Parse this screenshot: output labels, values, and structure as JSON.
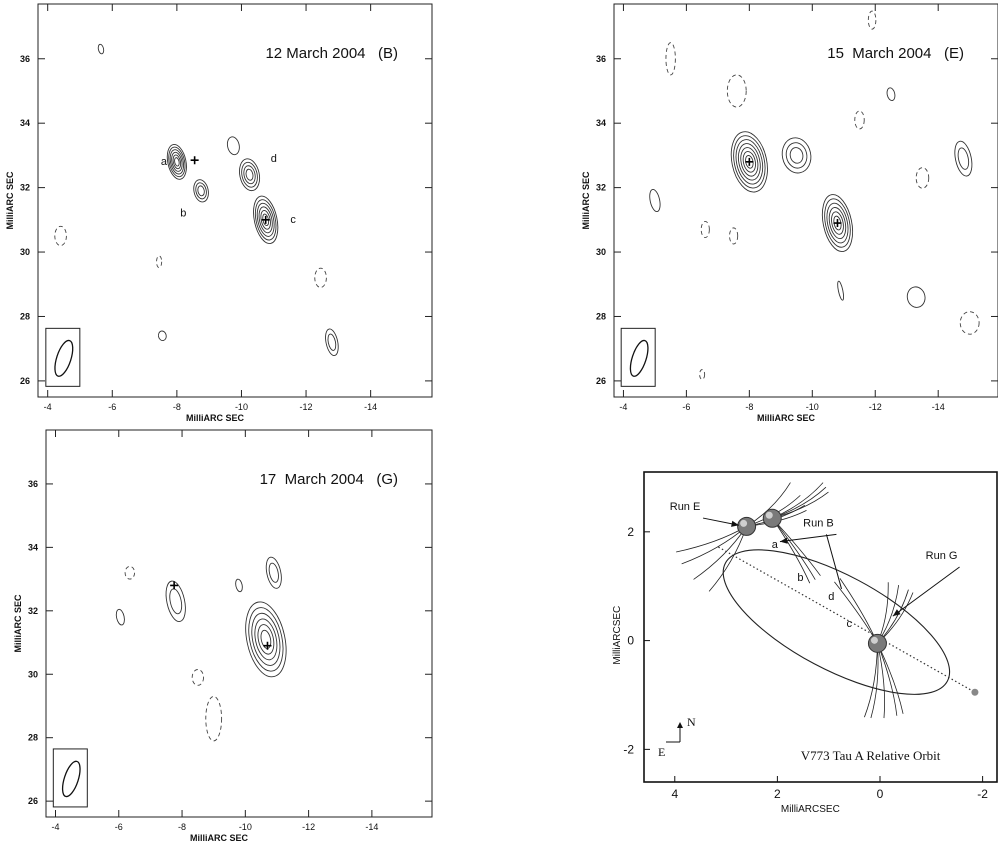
{
  "chart_data": [
    {
      "type": "contour",
      "title": "12 March 2004   (B)",
      "xlabel": "MilliARC SEC",
      "ylabel": "MilliARC SEC",
      "xlim": [
        -3.7,
        -15.9
      ],
      "ylim": [
        25.5,
        37.7
      ],
      "xticks": [
        -4,
        -6,
        -8,
        -10,
        -12,
        -14
      ],
      "yticks": [
        26,
        28,
        30,
        32,
        34,
        36
      ],
      "beam": {
        "x": -4.5,
        "y": 26.7,
        "rx": 0.22,
        "ry": 0.58
      },
      "components": [
        {
          "x": -8.0,
          "y": 32.8,
          "rx": 0.28,
          "ry": 0.55,
          "levels": 6,
          "label": "a",
          "lx": -7.6,
          "ly": 32.7
        },
        {
          "x": -8.75,
          "y": 31.9,
          "rx": 0.22,
          "ry": 0.35,
          "levels": 3,
          "label": "b",
          "lx": -8.2,
          "ly": 31.1
        },
        {
          "x": -10.25,
          "y": 32.4,
          "rx": 0.3,
          "ry": 0.5,
          "levels": 4,
          "label": "d",
          "lx": -11.0,
          "ly": 32.8
        },
        {
          "x": -10.75,
          "y": 31.0,
          "rx": 0.35,
          "ry": 0.75,
          "levels": 6,
          "label": "c",
          "lx": -11.6,
          "ly": 30.9
        },
        {
          "x": -9.75,
          "y": 33.3,
          "rx": 0.18,
          "ry": 0.28,
          "levels": 1
        },
        {
          "x": -12.8,
          "y": 27.2,
          "rx": 0.18,
          "ry": 0.42,
          "levels": 2
        },
        {
          "x": -7.55,
          "y": 27.4,
          "rx": 0.12,
          "ry": 0.15,
          "levels": 1
        },
        {
          "x": -5.65,
          "y": 36.3,
          "rx": 0.08,
          "ry": 0.15,
          "levels": 1
        }
      ],
      "dashed": [
        {
          "x": -4.4,
          "y": 30.5,
          "rx": 0.18,
          "ry": 0.3
        },
        {
          "x": -12.45,
          "y": 29.2,
          "rx": 0.18,
          "ry": 0.3
        },
        {
          "x": -7.45,
          "y": 29.7,
          "rx": 0.08,
          "ry": 0.18
        }
      ],
      "crosses": [
        {
          "x": -8.55,
          "y": 32.85
        },
        {
          "x": -10.75,
          "y": 31.0
        }
      ]
    },
    {
      "type": "contour",
      "title": "15  March 2004   (E)",
      "xlabel": "MilliARC SEC",
      "ylabel": "MilliARC SEC",
      "xlim": [
        -3.7,
        -15.9
      ],
      "ylim": [
        25.5,
        37.7
      ],
      "xticks": [
        -4,
        -6,
        -8,
        -10,
        -12,
        -14
      ],
      "yticks": [
        26,
        28,
        30,
        32,
        34,
        36
      ],
      "beam": {
        "x": -4.5,
        "y": 26.7,
        "rx": 0.22,
        "ry": 0.58
      },
      "components": [
        {
          "x": -8.0,
          "y": 32.8,
          "rx": 0.55,
          "ry": 0.95,
          "levels": 7
        },
        {
          "x": -9.5,
          "y": 33.0,
          "rx": 0.45,
          "ry": 0.55,
          "levels": 3
        },
        {
          "x": -10.8,
          "y": 30.9,
          "rx": 0.45,
          "ry": 0.9,
          "levels": 6
        },
        {
          "x": -14.8,
          "y": 32.9,
          "rx": 0.25,
          "ry": 0.55,
          "levels": 2
        },
        {
          "x": -13.3,
          "y": 28.6,
          "rx": 0.28,
          "ry": 0.32,
          "levels": 1
        },
        {
          "x": -5.0,
          "y": 31.6,
          "rx": 0.15,
          "ry": 0.35,
          "levels": 1
        },
        {
          "x": -12.5,
          "y": 34.9,
          "rx": 0.12,
          "ry": 0.2,
          "levels": 1
        },
        {
          "x": -10.9,
          "y": 28.8,
          "rx": 0.07,
          "ry": 0.3,
          "levels": 1
        }
      ],
      "dashed": [
        {
          "x": -5.5,
          "y": 36.0,
          "rx": 0.15,
          "ry": 0.5
        },
        {
          "x": -7.6,
          "y": 35.0,
          "rx": 0.3,
          "ry": 0.5
        },
        {
          "x": -11.5,
          "y": 34.1,
          "rx": 0.15,
          "ry": 0.28
        },
        {
          "x": -11.9,
          "y": 37.2,
          "rx": 0.12,
          "ry": 0.28
        },
        {
          "x": -13.5,
          "y": 32.3,
          "rx": 0.2,
          "ry": 0.32
        },
        {
          "x": -15.0,
          "y": 27.8,
          "rx": 0.3,
          "ry": 0.35
        },
        {
          "x": -6.6,
          "y": 30.7,
          "rx": 0.13,
          "ry": 0.25
        },
        {
          "x": -7.5,
          "y": 30.5,
          "rx": 0.13,
          "ry": 0.25
        },
        {
          "x": -6.5,
          "y": 26.2,
          "rx": 0.08,
          "ry": 0.15
        }
      ],
      "crosses": [
        {
          "x": -8.0,
          "y": 32.8
        },
        {
          "x": -10.8,
          "y": 30.9
        }
      ]
    },
    {
      "type": "contour",
      "title": "17  March 2004   (G)",
      "xlabel": "MilliARC SEC",
      "ylabel": "MilliARC SEC",
      "xlim": [
        -3.7,
        -15.9
      ],
      "ylim": [
        25.5,
        37.7
      ],
      "xticks": [
        -4,
        -6,
        -8,
        -10,
        -12,
        -14
      ],
      "yticks": [
        26,
        28,
        30,
        32,
        34,
        36
      ],
      "beam": {
        "x": -4.5,
        "y": 26.7,
        "rx": 0.22,
        "ry": 0.58
      },
      "components": [
        {
          "x": -7.8,
          "y": 32.3,
          "rx": 0.28,
          "ry": 0.65,
          "levels": 2
        },
        {
          "x": -10.65,
          "y": 31.1,
          "rx": 0.6,
          "ry": 1.2,
          "levels": 6
        },
        {
          "x": -10.9,
          "y": 33.2,
          "rx": 0.22,
          "ry": 0.5,
          "levels": 2
        },
        {
          "x": -9.8,
          "y": 32.8,
          "rx": 0.1,
          "ry": 0.2,
          "levels": 1
        },
        {
          "x": -6.05,
          "y": 31.8,
          "rx": 0.12,
          "ry": 0.25,
          "levels": 1
        }
      ],
      "dashed": [
        {
          "x": -6.35,
          "y": 33.2,
          "rx": 0.15,
          "ry": 0.2
        },
        {
          "x": -8.5,
          "y": 29.9,
          "rx": 0.18,
          "ry": 0.25
        },
        {
          "x": -9.0,
          "y": 28.6,
          "rx": 0.25,
          "ry": 0.7
        }
      ],
      "crosses": [
        {
          "x": -7.75,
          "y": 32.8
        },
        {
          "x": -10.7,
          "y": 30.9
        }
      ]
    },
    {
      "type": "orbit",
      "caption": "V773 Tau A Relative Orbit",
      "xlabel": "MilliARCSEC",
      "ylabel": "MilliARCSEC",
      "xlim": [
        4.6,
        -2.3
      ],
      "ylim": [
        -2.6,
        3.1
      ],
      "xticks": [
        4,
        2,
        0,
        -2
      ],
      "yticks": [
        -2,
        0,
        2
      ],
      "compass": {
        "north": "N",
        "east": "E"
      },
      "orbit_ellipse": {
        "cx": 0.85,
        "cy": 0.34,
        "semi_major": 2.45,
        "semi_minor": 0.92,
        "angle_deg": -28
      },
      "line_of_nodes": {
        "from": [
          3.15,
          1.72
        ],
        "to": [
          -1.85,
          -0.95
        ]
      },
      "stars": [
        {
          "x": 2.6,
          "y": 2.1
        },
        {
          "x": 2.1,
          "y": 2.25
        },
        {
          "x": 0.05,
          "y": -0.05
        }
      ],
      "labels": [
        {
          "text": "Run E",
          "x": 3.8,
          "y": 2.4
        },
        {
          "text": "Run B",
          "x": 1.2,
          "y": 2.1
        },
        {
          "text": "Run G",
          "x": -1.2,
          "y": 1.5
        },
        {
          "text": "a",
          "x": 2.05,
          "y": 1.7
        },
        {
          "text": "b",
          "x": 1.55,
          "y": 1.1
        },
        {
          "text": "d",
          "x": 0.95,
          "y": 0.75
        },
        {
          "text": "c",
          "x": 0.6,
          "y": 0.25
        }
      ]
    }
  ]
}
